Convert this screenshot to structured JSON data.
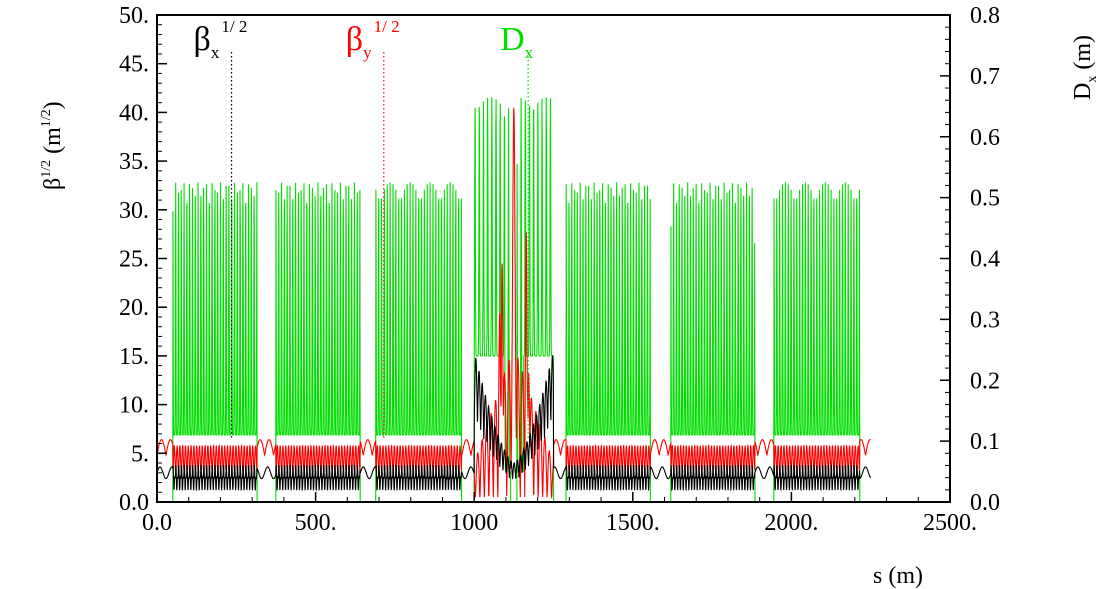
{
  "chart_data": {
    "type": "line",
    "title": "",
    "xlabel": "s (m)",
    "ylabel_left": {
      "base": "β",
      "sup": "1/2",
      "unit_open": " (m",
      "unit_sup": "1/2",
      "unit_close": ")"
    },
    "ylabel_right": {
      "base": "D",
      "sub": "x",
      "unit": " (m)"
    },
    "xlim": [
      0,
      2500
    ],
    "ylim_left": [
      0,
      50
    ],
    "ylim_right": [
      0,
      0.8
    ],
    "x_ticks": [
      "0.0",
      "500.",
      "1000",
      "1500.",
      "2000.",
      "2500."
    ],
    "x_tick_values": [
      0,
      500,
      1000,
      1500,
      2000,
      2500
    ],
    "y_ticks_left": [
      "0.0",
      "5.",
      "10.",
      "15.",
      "20.",
      "25.",
      "30.",
      "35.",
      "40.",
      "45.",
      "50."
    ],
    "y_tick_values_left": [
      0,
      5,
      10,
      15,
      20,
      25,
      30,
      35,
      40,
      45,
      50
    ],
    "y_ticks_right": [
      "0.0",
      "0.1",
      "0.2",
      "0.3",
      "0.4",
      "0.5",
      "0.6",
      "0.7",
      "0.8"
    ],
    "y_tick_values_right": [
      0,
      0.1,
      0.2,
      0.3,
      0.4,
      0.5,
      0.6,
      0.7,
      0.8
    ],
    "grid": false,
    "legend": [
      {
        "base": "β",
        "sub": "x",
        "sup": "1/ 2",
        "color": "#000000",
        "marker_x": 235
      },
      {
        "base": "β",
        "sub": "y",
        "sup": "1/ 2",
        "color": "#ff0000",
        "marker_x": 715
      },
      {
        "base": "D",
        "sub": "x",
        "sup": "",
        "color": "#00dd00",
        "marker_x": 1170
      }
    ],
    "series": [
      {
        "name": "βx^1/2",
        "axis": "left",
        "color": "#000000",
        "arc_ranges": [
          [
            50,
            315
          ],
          [
            375,
            640
          ],
          [
            690,
            960
          ],
          [
            1290,
            1555
          ],
          [
            1620,
            1885
          ],
          [
            1945,
            2215
          ]
        ],
        "arc_cells": 15,
        "arc_min": 1.6,
        "arc_max": 6.8,
        "ss_ranges": [
          [
            0,
            50
          ],
          [
            315,
            375
          ],
          [
            640,
            690
          ],
          [
            960,
            1000
          ],
          [
            1250,
            1290
          ],
          [
            1555,
            1620
          ],
          [
            1885,
            1945
          ],
          [
            2215,
            2250
          ]
        ],
        "ss_level": 3.0,
        "ir_range": [
          1000,
          1250
        ],
        "ir_peak": 15.5
      },
      {
        "name": "βy^1/2",
        "axis": "left",
        "color": "#ff0000",
        "arc_min": 3.2,
        "arc_max": 5.8,
        "ss_level": 4.8,
        "ir_peak": 40.5
      },
      {
        "name": "Dx",
        "axis": "right",
        "color": "#00dd00",
        "arc_peak": 0.525,
        "arc_base": 0.0,
        "ir_peak": 0.665
      }
    ]
  }
}
